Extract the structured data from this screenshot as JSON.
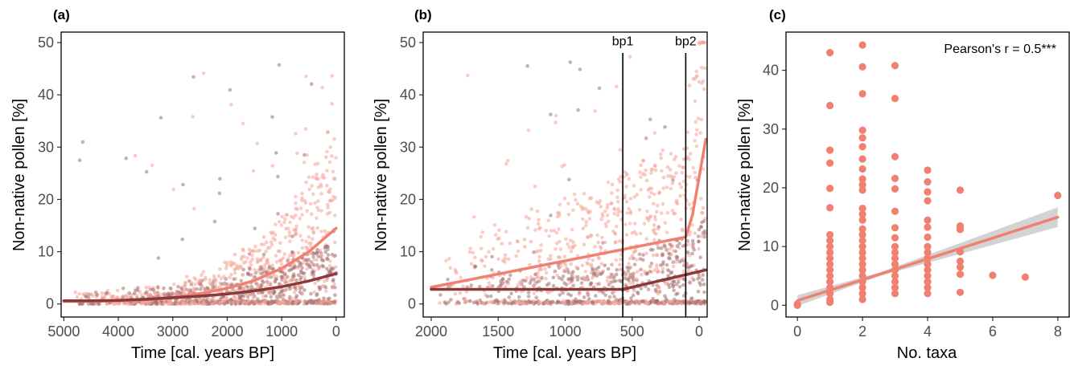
{
  "colors": {
    "light": "#F08070",
    "dark": "#8B3A3A",
    "band": "#C8C8C8",
    "light_points": "#F4A498",
    "dark_points": "#A27070"
  },
  "chart_data": [
    {
      "id": "a",
      "panel_label": "(a)",
      "type": "scatter",
      "xlabel": "Time [cal. years BP]",
      "ylabel": "Non-native pollen [%]",
      "xlim": [
        5050,
        -150
      ],
      "ylim": [
        -2.5,
        52
      ],
      "xticks": [
        5000,
        4000,
        3000,
        2000,
        1000,
        0
      ],
      "yticks": [
        0,
        10,
        20,
        30,
        40,
        50
      ],
      "series": [
        {
          "x": [
            5000,
            4500,
            4000,
            3500,
            3000,
            2500,
            2000,
            1500,
            1000,
            500,
            0
          ],
          "y": [
            0.5,
            0.5,
            0.6,
            0.8,
            1.2,
            2.0,
            3.0,
            4.5,
            6.8,
            10.0,
            14.5
          ]
        },
        {
          "x": [
            5000,
            4500,
            4000,
            3500,
            3000,
            2500,
            2000,
            1500,
            1000,
            500,
            0
          ],
          "y": [
            0.6,
            0.6,
            0.7,
            0.9,
            1.2,
            1.5,
            1.9,
            2.5,
            3.3,
            4.4,
            5.8
          ]
        }
      ]
    },
    {
      "id": "b",
      "panel_label": "(b)",
      "type": "scatter",
      "xlabel": "Time [cal. years BP]",
      "ylabel": "Non-native pollen [%]",
      "xlim": [
        2060,
        -60
      ],
      "ylim": [
        -2.5,
        52
      ],
      "xticks": [
        2000,
        1500,
        1000,
        500,
        0
      ],
      "yticks": [
        0,
        10,
        20,
        30,
        40,
        50
      ],
      "breakpoints": [
        {
          "label": "bp1",
          "x": 570
        },
        {
          "label": "bp2",
          "x": 100
        }
      ],
      "series": [
        {
          "x": [
            2000,
            100,
            50,
            -50
          ],
          "y": [
            3.2,
            12.8,
            17.0,
            31.5
          ]
        },
        {
          "x": [
            2000,
            570,
            -50
          ],
          "y": [
            2.8,
            2.8,
            6.5
          ]
        }
      ]
    },
    {
      "id": "c",
      "panel_label": "(c)",
      "type": "scatter",
      "xlabel": "No. taxa",
      "ylabel": "Non-native pollen [%]",
      "xlim": [
        -0.35,
        8.35
      ],
      "ylim": [
        -2.0,
        46.5
      ],
      "xticks": [
        0,
        2,
        4,
        6,
        8
      ],
      "yticks": [
        0,
        10,
        20,
        30,
        40
      ],
      "annotation": "Pearson's r = 0.5***",
      "points": [
        [
          0,
          0
        ],
        [
          0,
          0.1
        ],
        [
          0,
          0.2
        ],
        [
          1,
          43
        ],
        [
          1,
          34
        ],
        [
          1,
          26.4
        ],
        [
          1,
          24.2
        ],
        [
          1,
          19.9
        ],
        [
          1,
          16.6
        ],
        [
          1,
          12
        ],
        [
          1,
          11
        ],
        [
          1,
          10
        ],
        [
          1,
          9
        ],
        [
          1,
          8
        ],
        [
          1,
          7
        ],
        [
          1,
          6
        ],
        [
          1,
          5
        ],
        [
          1,
          4
        ],
        [
          1,
          3
        ],
        [
          1,
          2
        ],
        [
          1,
          1
        ],
        [
          1,
          0.5
        ],
        [
          2,
          44.3
        ],
        [
          2,
          40.6
        ],
        [
          2,
          36
        ],
        [
          2,
          29.8
        ],
        [
          2,
          28.5
        ],
        [
          2,
          27
        ],
        [
          2,
          24.9
        ],
        [
          2,
          23.2
        ],
        [
          2,
          21.5
        ],
        [
          2,
          20.5
        ],
        [
          2,
          19.6
        ],
        [
          2,
          16.5
        ],
        [
          2,
          15.5
        ],
        [
          2,
          14.5
        ],
        [
          2,
          13
        ],
        [
          2,
          12
        ],
        [
          2,
          11
        ],
        [
          2,
          10
        ],
        [
          2,
          9
        ],
        [
          2,
          8
        ],
        [
          2,
          7
        ],
        [
          2,
          6
        ],
        [
          2,
          5
        ],
        [
          2,
          4
        ],
        [
          2,
          3
        ],
        [
          2,
          2
        ],
        [
          2,
          1
        ],
        [
          3,
          40.8
        ],
        [
          3,
          35.2
        ],
        [
          3,
          25.3
        ],
        [
          3,
          21.6
        ],
        [
          3,
          19.8
        ],
        [
          3,
          16
        ],
        [
          3,
          13.2
        ],
        [
          3,
          11.5
        ],
        [
          3,
          10
        ],
        [
          3,
          9
        ],
        [
          3,
          8
        ],
        [
          3,
          7
        ],
        [
          3,
          6
        ],
        [
          3,
          5
        ],
        [
          3,
          4
        ],
        [
          3,
          3
        ],
        [
          3,
          2
        ],
        [
          4,
          23
        ],
        [
          4,
          21
        ],
        [
          4,
          19.3
        ],
        [
          4,
          17.8
        ],
        [
          4,
          14.5
        ],
        [
          4,
          13.3
        ],
        [
          4,
          11.6
        ],
        [
          4,
          10
        ],
        [
          4,
          9
        ],
        [
          4,
          8
        ],
        [
          4,
          7
        ],
        [
          4,
          6
        ],
        [
          4,
          5
        ],
        [
          4,
          4
        ],
        [
          4,
          3
        ],
        [
          4,
          2
        ],
        [
          5,
          19.6
        ],
        [
          5,
          13.5
        ],
        [
          5,
          12.9
        ],
        [
          5,
          9.1
        ],
        [
          5,
          7.5
        ],
        [
          5,
          6.5
        ],
        [
          5,
          5.3
        ],
        [
          5,
          2.2
        ],
        [
          6,
          5.1
        ],
        [
          7,
          4.8
        ],
        [
          8,
          18.7
        ]
      ],
      "series": [
        {
          "x": [
            0,
            8
          ],
          "y": [
            0.8,
            15.0
          ]
        }
      ]
    }
  ]
}
